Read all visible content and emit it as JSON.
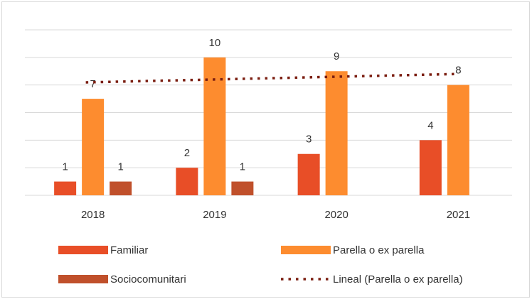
{
  "chart_data": {
    "type": "bar",
    "categories": [
      "2018",
      "2019",
      "2020",
      "2021"
    ],
    "series": [
      {
        "name": "Familiar",
        "color": "#e84e27",
        "values": [
          1,
          2,
          3,
          4
        ]
      },
      {
        "name": "Parella o ex parella",
        "color": "#fd8c2f",
        "values": [
          7,
          10,
          9,
          8
        ]
      },
      {
        "name": "Sociocomunitari",
        "color": "#c0502b",
        "values": [
          1,
          1,
          null,
          null
        ]
      }
    ],
    "trendline": {
      "name": "Lineal (Parella o ex parella)",
      "of": 1,
      "kind": "linear",
      "color": "#7b1e11"
    },
    "ylim": [
      0,
      12
    ],
    "yticks": [
      0,
      2,
      4,
      6,
      8,
      10,
      12
    ],
    "grid": true,
    "legend": "bottom"
  }
}
